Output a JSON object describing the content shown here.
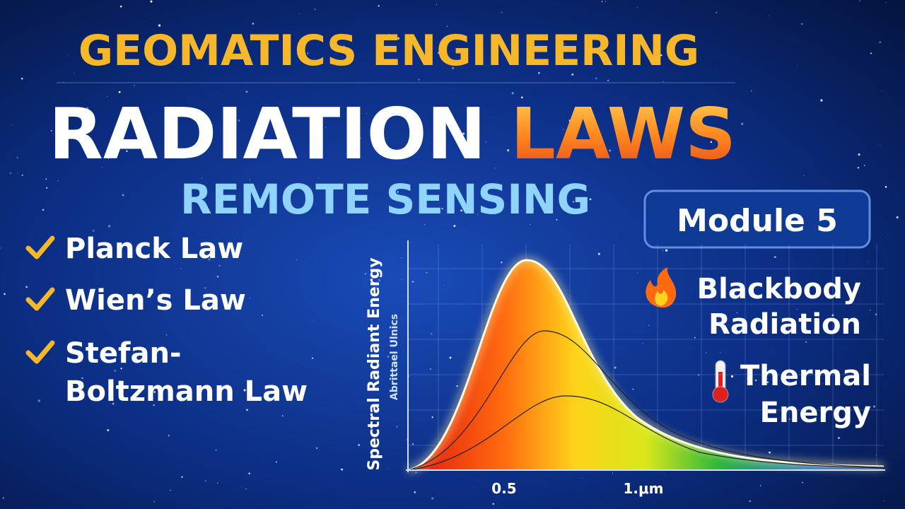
{
  "header": {
    "title": "GEOMATICS ENGINEERING"
  },
  "headline": {
    "main": "RADIATION",
    "accent": "LAWS"
  },
  "subtitle": "REMOTE SENSING",
  "topics": [
    {
      "lines": [
        "Planck Law"
      ]
    },
    {
      "lines": [
        "Wien’s Law"
      ]
    },
    {
      "lines": [
        "Stefan-",
        "Boltzmann Law"
      ]
    }
  ],
  "module": "Module 5",
  "features": [
    {
      "lines": [
        "Blackbody",
        "Radiation"
      ]
    },
    {
      "lines": [
        "Thermal",
        "Energy"
      ]
    }
  ],
  "graph": {
    "y_label": "Spectral Radiant Energy",
    "y_sublabel": "Abrittael Ulnics",
    "x_ticks": [
      "0.5",
      "1.μm"
    ]
  }
}
